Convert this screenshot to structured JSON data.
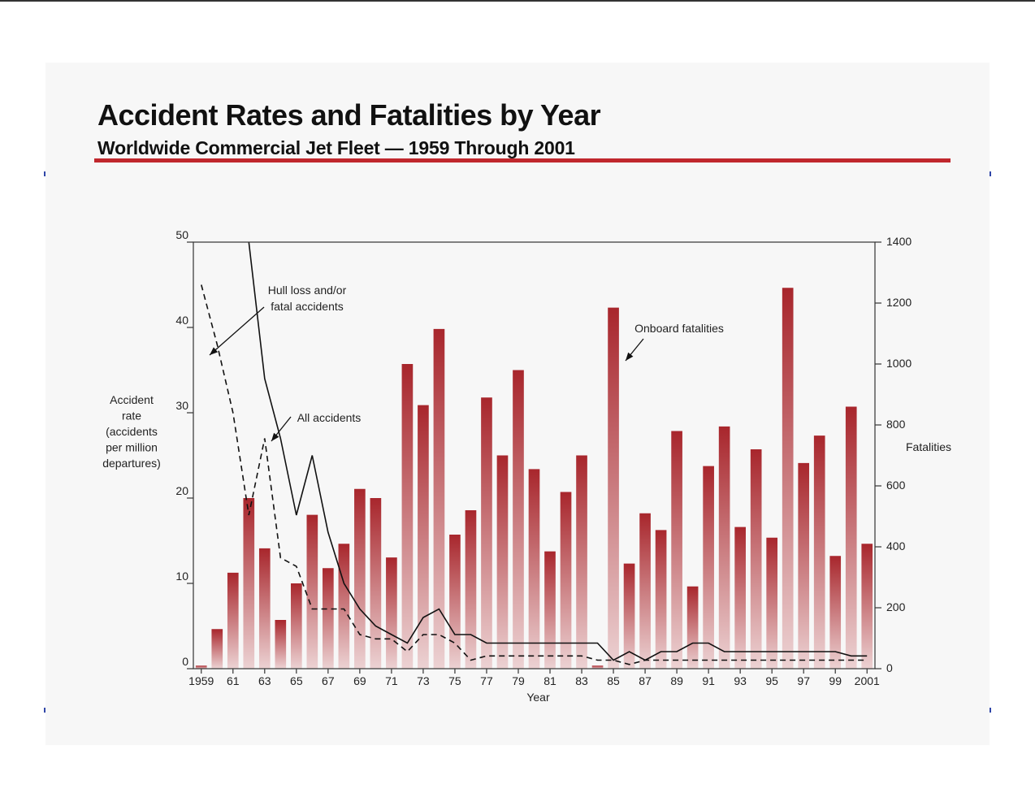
{
  "chart_data": {
    "type": "bar",
    "title": "Accident Rates and Fatalities by Year",
    "subtitle": "Worldwide Commercial Jet Fleet — 1959 Through 2001",
    "xlabel": "Year",
    "ylabel_left": [
      "Accident",
      "rate",
      "(accidents",
      "per million",
      "departures)"
    ],
    "ylabel_right": "Fatalities",
    "ylim_left": [
      0,
      50
    ],
    "ylim_right": [
      0,
      1400
    ],
    "yticks_left": [
      "0",
      "10",
      "20",
      "30",
      "40",
      "50"
    ],
    "yticks_right": [
      "0",
      "200",
      "400",
      "600",
      "800",
      "1000",
      "1200",
      "1400"
    ],
    "x": [
      1959,
      1960,
      1961,
      1962,
      1963,
      1964,
      1965,
      1966,
      1967,
      1968,
      1969,
      1970,
      1971,
      1972,
      1973,
      1974,
      1975,
      1976,
      1977,
      1978,
      1979,
      1980,
      1981,
      1982,
      1983,
      1984,
      1985,
      1986,
      1987,
      1988,
      1989,
      1990,
      1991,
      1992,
      1993,
      1994,
      1995,
      1996,
      1997,
      1998,
      1999,
      2000,
      2001
    ],
    "xtick_labels": [
      "1959",
      "61",
      "63",
      "65",
      "67",
      "69",
      "71",
      "73",
      "75",
      "77",
      "79",
      "81",
      "83",
      "85",
      "87",
      "89",
      "91",
      "93",
      "95",
      "97",
      "99",
      "2001"
    ],
    "series": [
      {
        "name": "Onboard fatalities",
        "kind": "bar",
        "axis": "right",
        "values": [
          10,
          130,
          315,
          560,
          395,
          160,
          280,
          505,
          330,
          410,
          590,
          560,
          365,
          1000,
          865,
          1115,
          440,
          520,
          890,
          700,
          980,
          655,
          385,
          580,
          700,
          10,
          1185,
          345,
          510,
          455,
          780,
          270,
          665,
          795,
          465,
          720,
          430,
          1250,
          675,
          765,
          370,
          860,
          410
        ]
      },
      {
        "name": "All accidents",
        "kind": "line",
        "axis": "left",
        "values": [
          null,
          48,
          null,
          50,
          34,
          27,
          18,
          25,
          16,
          10,
          7,
          5,
          4,
          3,
          6,
          7,
          4,
          4,
          3,
          3,
          3,
          3,
          3,
          3,
          3,
          3,
          1,
          2,
          1,
          2,
          2,
          3,
          3,
          2,
          2,
          2,
          2,
          2,
          2,
          2,
          2,
          1.5,
          1.5
        ]
      },
      {
        "name": "Hull loss and/or fatal accidents",
        "kind": "line",
        "axis": "left",
        "values": [
          45,
          38,
          30,
          18,
          27,
          13,
          12,
          7,
          7,
          7,
          4,
          3.5,
          3.5,
          2,
          4,
          4,
          3,
          1,
          1.5,
          1.5,
          1.5,
          1.5,
          1.5,
          1.5,
          1.5,
          1,
          1,
          0.5,
          1,
          1,
          1,
          1,
          1,
          1,
          1,
          1,
          1,
          1,
          1,
          1,
          1,
          1,
          1
        ]
      }
    ],
    "annotations": [
      {
        "text": [
          "Hull loss and/or",
          "fatal accidents"
        ],
        "points_to_year": 1959,
        "points_to_value": 40
      },
      {
        "text": [
          "All accidents"
        ],
        "points_to_year": 1964,
        "points_to_value": 27
      },
      {
        "text": [
          "Onboard fatalities"
        ],
        "points_to_year": 1985,
        "points_to_value": 1000
      }
    ],
    "grid": false,
    "legend": "none",
    "colors": {
      "bar_top": "#a8262c",
      "bar_bottom": "#ecd2d3",
      "line": "#111111",
      "title_rule": "#c0272d"
    }
  }
}
